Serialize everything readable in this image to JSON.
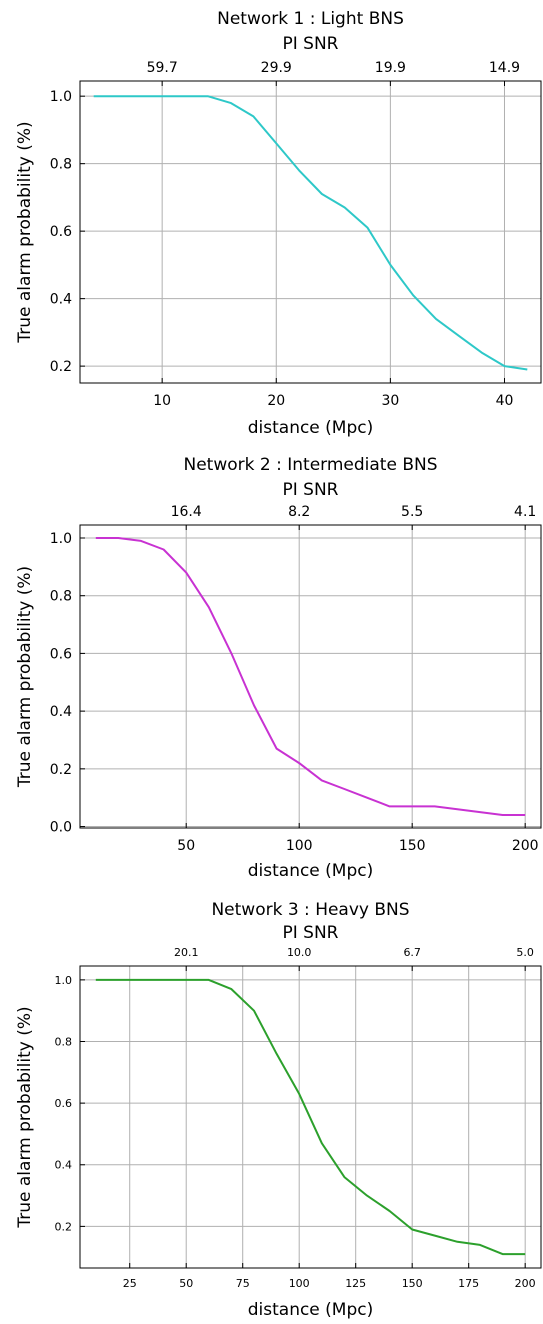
{
  "chart_data": [
    {
      "type": "line",
      "title": "Network 1 : Light BNS",
      "top_axis_label": "PI SNR",
      "top_ticks": [
        {
          "label": "59.7",
          "x": 10
        },
        {
          "label": "29.9",
          "x": 20
        },
        {
          "label": "19.9",
          "x": 30
        },
        {
          "label": "14.9",
          "x": 40
        }
      ],
      "xlabel": "distance (Mpc)",
      "ylabel": "True alarm probability (%)",
      "xlim": [
        2.8,
        43.2
      ],
      "ylim": [
        0.15,
        1.045
      ],
      "xticks": [
        10,
        20,
        30,
        40
      ],
      "yticks": [
        0.2,
        0.4,
        0.6,
        0.8,
        1.0
      ],
      "ytick_labels": [
        "0.2",
        "0.4",
        "0.6",
        "0.8",
        "1.0"
      ],
      "grid": true,
      "color": "#2ec8c8",
      "series": [
        {
          "x": [
            4,
            6,
            8,
            10,
            12,
            14,
            16,
            18,
            20,
            22,
            24,
            26,
            28,
            30,
            32,
            34,
            36,
            38,
            40,
            42
          ],
          "values": [
            1.0,
            1.0,
            1.0,
            1.0,
            1.0,
            1.0,
            0.98,
            0.94,
            0.86,
            0.78,
            0.71,
            0.67,
            0.61,
            0.5,
            0.41,
            0.34,
            0.29,
            0.24,
            0.2,
            0.19
          ]
        }
      ]
    },
    {
      "type": "line",
      "title": "Network 2 : Intermediate BNS",
      "top_axis_label": "PI SNR",
      "top_ticks": [
        {
          "label": "16.4",
          "x": 50
        },
        {
          "label": "8.2",
          "x": 100
        },
        {
          "label": "5.5",
          "x": 150
        },
        {
          "label": "4.1",
          "x": 200
        }
      ],
      "xlabel": "distance (Mpc)",
      "ylabel": "True alarm probability (%)",
      "xlim": [
        3,
        207
      ],
      "ylim": [
        -0.005,
        1.045
      ],
      "xticks": [
        50,
        100,
        150,
        200
      ],
      "yticks": [
        0.0,
        0.2,
        0.4,
        0.6,
        0.8,
        1.0
      ],
      "ytick_labels": [
        "0.0",
        "0.2",
        "0.4",
        "0.6",
        "0.8",
        "1.0"
      ],
      "grid": true,
      "color": "#c832d2",
      "series": [
        {
          "x": [
            10,
            20,
            30,
            40,
            50,
            60,
            70,
            80,
            90,
            100,
            110,
            120,
            130,
            140,
            150,
            160,
            170,
            180,
            190,
            200
          ],
          "values": [
            1.0,
            1.0,
            0.99,
            0.96,
            0.88,
            0.76,
            0.6,
            0.42,
            0.27,
            0.22,
            0.16,
            0.13,
            0.1,
            0.07,
            0.07,
            0.07,
            0.06,
            0.05,
            0.04,
            0.04
          ]
        }
      ]
    },
    {
      "type": "line",
      "title": "Network 3 : Heavy BNS",
      "top_axis_label": "PI SNR",
      "top_ticks": [
        {
          "label": "20.1",
          "x": 50
        },
        {
          "label": "10.0",
          "x": 100
        },
        {
          "label": "6.7",
          "x": 150
        },
        {
          "label": "5.0",
          "x": 200
        }
      ],
      "xlabel": "distance (Mpc)",
      "ylabel": "True alarm probability (%)",
      "xlim": [
        3,
        207
      ],
      "ylim": [
        0.065,
        1.045
      ],
      "xticks": [
        25,
        50,
        75,
        100,
        125,
        150,
        175,
        200
      ],
      "yticks": [
        0.2,
        0.4,
        0.6,
        0.8,
        1.0
      ],
      "ytick_labels": [
        "0.2",
        "0.4",
        "0.6",
        "0.8",
        "1.0"
      ],
      "grid": true,
      "color": "#2ca02c",
      "series": [
        {
          "x": [
            10,
            20,
            30,
            40,
            50,
            60,
            70,
            80,
            90,
            100,
            110,
            120,
            130,
            140,
            150,
            160,
            170,
            180,
            190,
            200
          ],
          "values": [
            1.0,
            1.0,
            1.0,
            1.0,
            1.0,
            1.0,
            0.97,
            0.9,
            0.76,
            0.63,
            0.47,
            0.36,
            0.3,
            0.25,
            0.19,
            0.17,
            0.15,
            0.14,
            0.11,
            0.11
          ]
        }
      ]
    }
  ]
}
